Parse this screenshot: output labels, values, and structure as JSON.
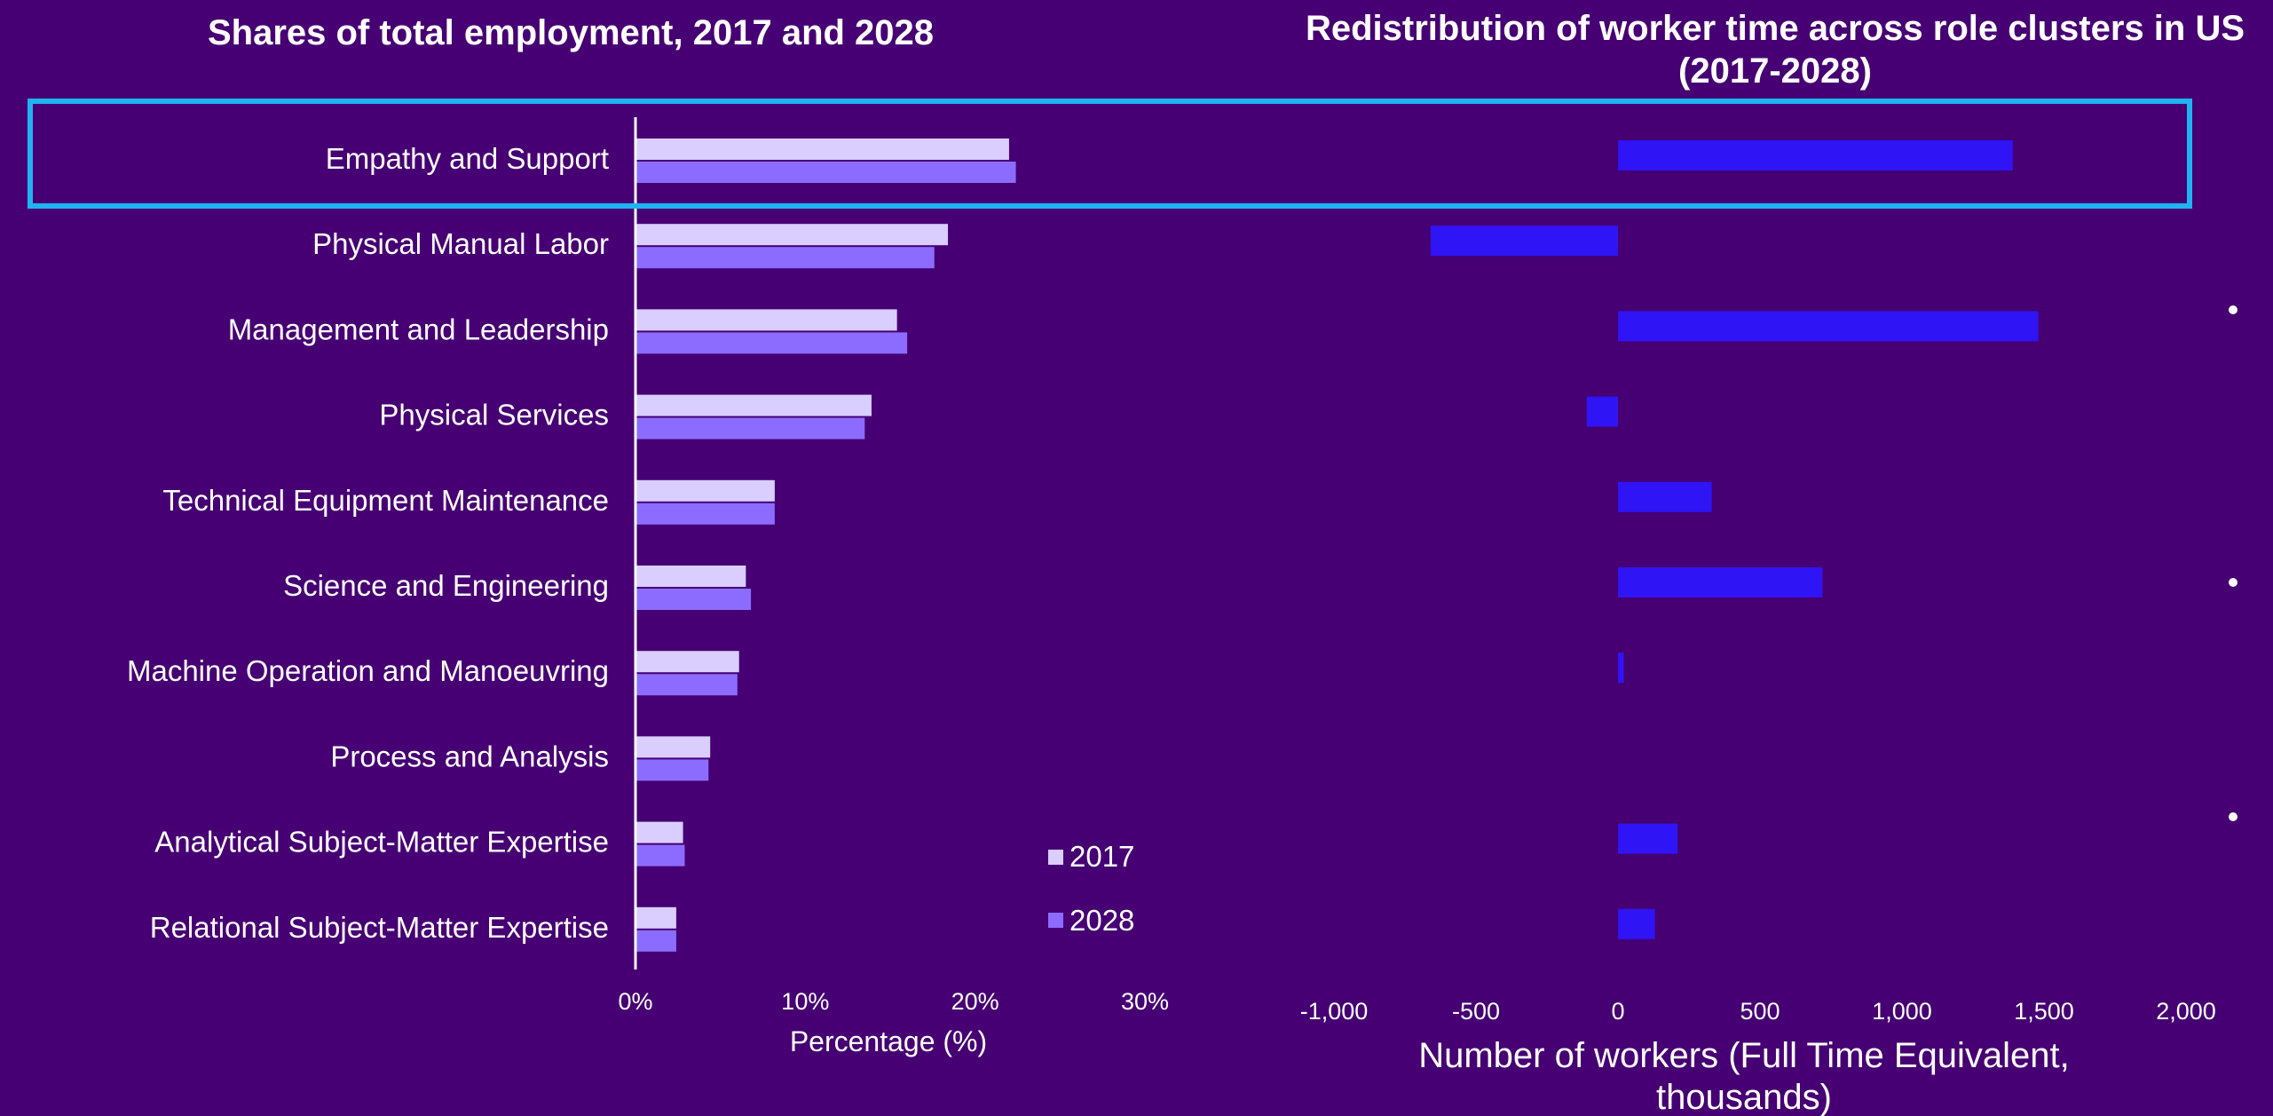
{
  "chart_data": [
    {
      "type": "bar",
      "orientation": "horizontal",
      "title": "Shares of total employment, 2017 and 2028",
      "categories": [
        "Empathy and Support",
        "Physical Manual Labor",
        "Management and Leadership",
        "Physical Services",
        "Technical Equipment Maintenance",
        "Science and Engineering",
        "Machine Operation and Manoeuvring",
        "Process and Analysis",
        "Analytical Subject-Matter Expertise",
        "Relational Subject-Matter Expertise"
      ],
      "series": [
        {
          "name": "2017",
          "color": "#d9ceff",
          "values": [
            22.0,
            18.4,
            15.4,
            13.9,
            8.2,
            6.5,
            6.1,
            4.4,
            2.8,
            2.4
          ]
        },
        {
          "name": "2028",
          "color": "#8c6cff",
          "values": [
            22.4,
            17.6,
            16.0,
            13.5,
            8.2,
            6.8,
            6.0,
            4.3,
            2.9,
            2.4
          ]
        }
      ],
      "xlabel": "Percentage (%)",
      "xlim": [
        0,
        30
      ],
      "xticks": [
        "0%",
        "10%",
        "20%",
        "30%"
      ],
      "legend_placement": "bottom-right",
      "grid": false
    },
    {
      "type": "bar",
      "orientation": "horizontal",
      "title": "Redistribution of worker time across role clusters in US (2017-2028)",
      "title_lines": [
        "Redistribution of worker time across role clusters in US",
        "(2017-2028)"
      ],
      "categories": [
        "Empathy and Support",
        "Physical Manual Labor",
        "Management and Leadership",
        "Physical Services",
        "Technical Equipment Maintenance",
        "Science and Engineering",
        "Machine Operation and Manoeuvring",
        "Process and Analysis",
        "Analytical Subject-Matter Expertise",
        "Relational Subject-Matter Expertise"
      ],
      "series": [
        {
          "color": "#2f14f5",
          "values": [
            1390,
            -660,
            1480,
            -110,
            330,
            720,
            20,
            0,
            210,
            130
          ]
        }
      ],
      "xlabel": "Number of workers (Full Time Equivalent, thousands)",
      "xlabel_lines": [
        "Number of workers (Full Time Equivalent,",
        "thousands)"
      ],
      "xlim": [
        -1000,
        2000
      ],
      "xticks": [
        "-1,000",
        "-500",
        "0",
        "500",
        "1,000",
        "1,500",
        "2,000"
      ],
      "grid": false
    }
  ],
  "highlight": {
    "category": "Empathy and Support",
    "color": "#1fb3f2"
  },
  "colors": {
    "background": "#460073",
    "axis": "#ffffff",
    "bullet": "#ffffff"
  }
}
